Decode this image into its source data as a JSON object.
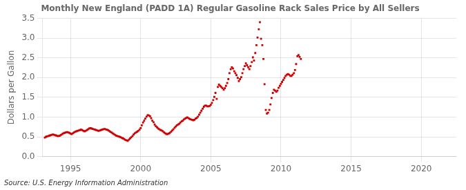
{
  "chart_data": {
    "type": "scatter",
    "title": "Monthly New England (PADD 1A) Regular Gasoline Rack Sales Price by All Sellers",
    "ylabel": "Dollars per Gallon",
    "source": "Source: U.S. Energy Information Administration",
    "color": "#CC0000",
    "marker": "square",
    "grid": true,
    "xlim": [
      1993.0,
      2022.5
    ],
    "xticks": [
      1995,
      2000,
      2005,
      2010,
      2015,
      2020
    ],
    "ylim": [
      0.0,
      3.5
    ],
    "yticks": [
      {
        "value": 0.0,
        "label": "0.0"
      },
      0.5,
      {
        "value": 1.0,
        "label": "1.0"
      },
      1.5,
      {
        "value": 2.0,
        "label": "2.0"
      },
      2.5,
      {
        "value": 3.0,
        "label": "3.0"
      },
      3.5
    ],
    "x": [
      1993.17,
      1993.25,
      1993.33,
      1993.42,
      1993.5,
      1993.58,
      1993.67,
      1993.75,
      1993.83,
      1993.92,
      1994.0,
      1994.08,
      1994.17,
      1994.25,
      1994.33,
      1994.42,
      1994.5,
      1994.58,
      1994.67,
      1994.75,
      1994.83,
      1994.92,
      1995.0,
      1995.08,
      1995.17,
      1995.25,
      1995.33,
      1995.42,
      1995.5,
      1995.58,
      1995.67,
      1995.75,
      1995.83,
      1995.92,
      1996.0,
      1996.08,
      1996.17,
      1996.25,
      1996.33,
      1996.42,
      1996.5,
      1996.58,
      1996.67,
      1996.75,
      1996.83,
      1996.92,
      1997.0,
      1997.08,
      1997.17,
      1997.25,
      1997.33,
      1997.42,
      1997.5,
      1997.58,
      1997.67,
      1997.75,
      1997.83,
      1997.92,
      1998.0,
      1998.08,
      1998.17,
      1998.25,
      1998.33,
      1998.42,
      1998.5,
      1998.58,
      1998.67,
      1998.75,
      1998.83,
      1998.92,
      1999.0,
      1999.08,
      1999.17,
      1999.25,
      1999.33,
      1999.42,
      1999.5,
      1999.58,
      1999.67,
      1999.75,
      1999.83,
      1999.92,
      2000.0,
      2000.08,
      2000.17,
      2000.25,
      2000.33,
      2000.42,
      2000.5,
      2000.58,
      2000.67,
      2000.75,
      2000.83,
      2000.92,
      2001.0,
      2001.08,
      2001.17,
      2001.25,
      2001.33,
      2001.42,
      2001.5,
      2001.58,
      2001.67,
      2001.75,
      2001.83,
      2001.92,
      2002.0,
      2002.08,
      2002.17,
      2002.25,
      2002.33,
      2002.42,
      2002.5,
      2002.58,
      2002.67,
      2002.75,
      2002.83,
      2002.92,
      2003.0,
      2003.08,
      2003.17,
      2003.25,
      2003.33,
      2003.42,
      2003.5,
      2003.58,
      2003.67,
      2003.75,
      2003.83,
      2003.92,
      2004.0,
      2004.08,
      2004.17,
      2004.25,
      2004.33,
      2004.42,
      2004.5,
      2004.58,
      2004.67,
      2004.75,
      2004.83,
      2004.92,
      2005.0,
      2005.08,
      2005.17,
      2005.25,
      2005.33,
      2005.42,
      2005.5,
      2005.58,
      2005.67,
      2005.75,
      2005.83,
      2005.92,
      2006.0,
      2006.08,
      2006.17,
      2006.25,
      2006.33,
      2006.42,
      2006.5,
      2006.58,
      2006.67,
      2006.75,
      2006.83,
      2006.92,
      2007.0,
      2007.08,
      2007.17,
      2007.25,
      2007.33,
      2007.42,
      2007.5,
      2007.58,
      2007.67,
      2007.75,
      2007.83,
      2007.92,
      2008.0,
      2008.08,
      2008.17,
      2008.25,
      2008.33,
      2008.42,
      2008.5,
      2008.58,
      2008.67,
      2008.75,
      2008.83,
      2008.92,
      2009.0,
      2009.08,
      2009.17,
      2009.25,
      2009.33,
      2009.42,
      2009.5,
      2009.58,
      2009.67,
      2009.75,
      2009.83,
      2009.92,
      2010.0,
      2010.08,
      2010.17,
      2010.25,
      2010.33,
      2010.42,
      2010.5,
      2010.58,
      2010.67,
      2010.75,
      2010.83,
      2010.92,
      2011.0,
      2011.08,
      2011.17,
      2011.25,
      2011.33,
      2011.42
    ],
    "values": [
      0.48,
      0.5,
      0.51,
      0.52,
      0.53,
      0.54,
      0.55,
      0.56,
      0.55,
      0.54,
      0.53,
      0.52,
      0.52,
      0.53,
      0.55,
      0.57,
      0.59,
      0.6,
      0.61,
      0.62,
      0.61,
      0.6,
      0.58,
      0.57,
      0.59,
      0.61,
      0.63,
      0.64,
      0.65,
      0.66,
      0.67,
      0.68,
      0.67,
      0.65,
      0.64,
      0.65,
      0.67,
      0.69,
      0.71,
      0.72,
      0.71,
      0.7,
      0.69,
      0.68,
      0.67,
      0.66,
      0.65,
      0.66,
      0.67,
      0.68,
      0.69,
      0.7,
      0.69,
      0.68,
      0.67,
      0.65,
      0.63,
      0.61,
      0.59,
      0.57,
      0.55,
      0.53,
      0.52,
      0.51,
      0.5,
      0.49,
      0.47,
      0.46,
      0.44,
      0.42,
      0.41,
      0.4,
      0.43,
      0.46,
      0.49,
      0.52,
      0.56,
      0.59,
      0.61,
      0.63,
      0.65,
      0.68,
      0.72,
      0.79,
      0.86,
      0.91,
      0.96,
      1.01,
      1.05,
      1.04,
      1.02,
      0.97,
      0.91,
      0.87,
      0.81,
      0.77,
      0.74,
      0.71,
      0.69,
      0.67,
      0.66,
      0.64,
      0.61,
      0.59,
      0.57,
      0.57,
      0.58,
      0.6,
      0.63,
      0.66,
      0.69,
      0.73,
      0.76,
      0.79,
      0.81,
      0.83,
      0.86,
      0.89,
      0.91,
      0.94,
      0.96,
      0.98,
      0.99,
      0.97,
      0.95,
      0.94,
      0.93,
      0.92,
      0.93,
      0.96,
      0.98,
      1.01,
      1.06,
      1.11,
      1.16,
      1.21,
      1.26,
      1.29,
      1.29,
      1.27,
      1.27,
      1.28,
      1.31,
      1.36,
      1.43,
      1.51,
      1.61,
      1.46,
      1.76,
      1.82,
      1.79,
      1.76,
      1.73,
      1.69,
      1.73,
      1.79,
      1.86,
      1.96,
      2.11,
      2.21,
      2.26,
      2.23,
      2.16,
      2.11,
      2.06,
      1.99,
      1.91,
      1.96,
      2.01,
      2.11,
      2.21,
      2.29,
      2.36,
      2.31,
      2.26,
      2.21,
      2.29,
      2.39,
      2.51,
      2.43,
      2.62,
      2.82,
      3.01,
      3.22,
      3.4,
      2.98,
      2.82,
      2.47,
      1.83,
      1.18,
      1.09,
      1.11,
      1.18,
      1.32,
      1.48,
      1.61,
      1.69,
      1.67,
      1.64,
      1.67,
      1.74,
      1.79,
      1.84,
      1.89,
      1.94,
      1.99,
      2.04,
      2.07,
      2.09,
      2.07,
      2.04,
      2.04,
      2.07,
      2.11,
      2.19,
      2.34,
      2.54,
      2.57,
      2.52,
      2.47
    ]
  }
}
